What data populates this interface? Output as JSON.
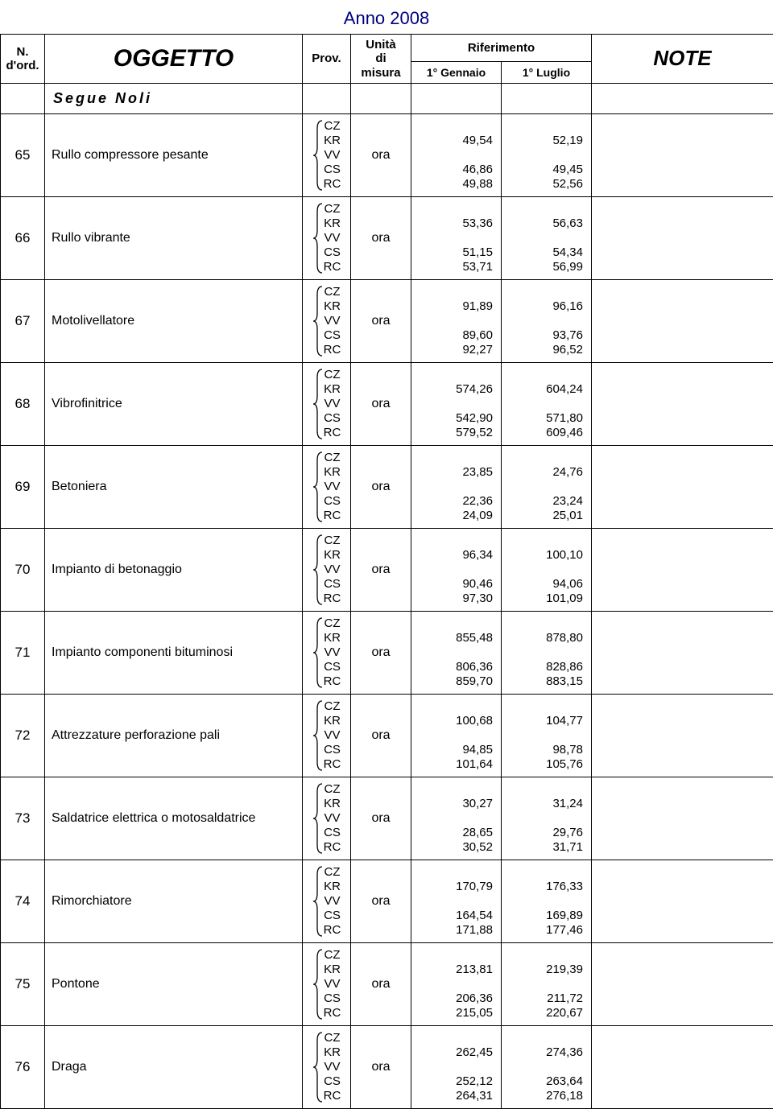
{
  "colors": {
    "year_color": "#000080",
    "border_color": "#000000",
    "background": "#ffffff",
    "text_color": "#000000"
  },
  "year_title": "Anno 2008",
  "headers": {
    "n_ord": "N.\nd'ord.",
    "oggetto": "OGGETTO",
    "prov": "Prov.",
    "unita": "Unità\ndi\nmisura",
    "riferimento": "Riferimento",
    "note": "NOTE",
    "gennaio": "1° Gennaio",
    "luglio": "1° Luglio"
  },
  "segue_label": "Segue Noli",
  "prov_codes": [
    "CZ",
    "KR",
    "VV",
    "CS",
    "RC"
  ],
  "rows": [
    {
      "n": "65",
      "oggetto": "Rullo compressore pesante",
      "unita": "ora",
      "gen": [
        "",
        "49,54",
        "",
        "46,86",
        "49,88"
      ],
      "lug": [
        "",
        "52,19",
        "",
        "49,45",
        "52,56"
      ]
    },
    {
      "n": "66",
      "oggetto": "Rullo vibrante",
      "unita": "ora",
      "gen": [
        "",
        "53,36",
        "",
        "51,15",
        "53,71"
      ],
      "lug": [
        "",
        "56,63",
        "",
        "54,34",
        "56,99"
      ]
    },
    {
      "n": "67",
      "oggetto": "Motolivellatore",
      "unita": "ora",
      "gen": [
        "",
        "91,89",
        "",
        "89,60",
        "92,27"
      ],
      "lug": [
        "",
        "96,16",
        "",
        "93,76",
        "96,52"
      ]
    },
    {
      "n": "68",
      "oggetto": "Vibrofinitrice",
      "unita": "ora",
      "gen": [
        "",
        "574,26",
        "",
        "542,90",
        "579,52"
      ],
      "lug": [
        "",
        "604,24",
        "",
        "571,80",
        "609,46"
      ]
    },
    {
      "n": "69",
      "oggetto": "Betoniera",
      "unita": "ora",
      "gen": [
        "",
        "23,85",
        "",
        "22,36",
        "24,09"
      ],
      "lug": [
        "",
        "24,76",
        "",
        "23,24",
        "25,01"
      ]
    },
    {
      "n": "70",
      "oggetto": "Impianto di betonaggio",
      "unita": "ora",
      "gen": [
        "",
        "96,34",
        "",
        "90,46",
        "97,30"
      ],
      "lug": [
        "",
        "100,10",
        "",
        "94,06",
        "101,09"
      ]
    },
    {
      "n": "71",
      "oggetto": "Impianto componenti bituminosi",
      "unita": "ora",
      "gen": [
        "",
        "855,48",
        "",
        "806,36",
        "859,70"
      ],
      "lug": [
        "",
        "878,80",
        "",
        "828,86",
        "883,15"
      ]
    },
    {
      "n": "72",
      "oggetto": "Attrezzature perforazione pali",
      "unita": "ora",
      "gen": [
        "",
        "100,68",
        "",
        "94,85",
        "101,64"
      ],
      "lug": [
        "",
        "104,77",
        "",
        "98,78",
        "105,76"
      ]
    },
    {
      "n": "73",
      "oggetto": "Saldatrice elettrica o motosaldatrice",
      "unita": "ora",
      "gen": [
        "",
        "30,27",
        "",
        "28,65",
        "30,52"
      ],
      "lug": [
        "",
        "31,24",
        "",
        "29,76",
        "31,71"
      ]
    },
    {
      "n": "74",
      "oggetto": "Rimorchiatore",
      "unita": "ora",
      "gen": [
        "",
        "170,79",
        "",
        "164,54",
        "171,88"
      ],
      "lug": [
        "",
        "176,33",
        "",
        "169,89",
        "177,46"
      ]
    },
    {
      "n": "75",
      "oggetto": "Pontone",
      "unita": "ora",
      "gen": [
        "",
        "213,81",
        "",
        "206,36",
        "215,05"
      ],
      "lug": [
        "",
        "219,39",
        "",
        "211,72",
        "220,67"
      ]
    },
    {
      "n": "76",
      "oggetto": "Draga",
      "unita": "ora",
      "gen": [
        "",
        "262,45",
        "",
        "252,12",
        "264,31"
      ],
      "lug": [
        "",
        "274,36",
        "",
        "263,64",
        "276,18"
      ]
    }
  ]
}
